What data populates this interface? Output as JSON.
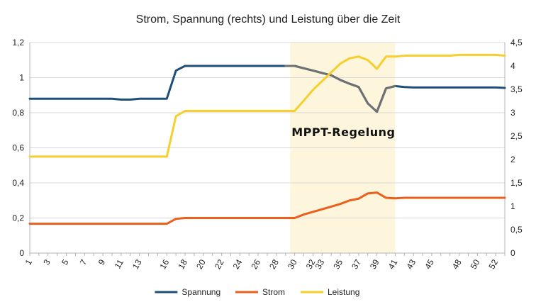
{
  "chart_data": {
    "type": "line",
    "title": "Strom, Spannung (rechts) und Leistung über die Zeit",
    "x": [
      1,
      2,
      3,
      4,
      5,
      6,
      7,
      8,
      9,
      10,
      11,
      12,
      13,
      14,
      15,
      16,
      17,
      18,
      19,
      20,
      21,
      22,
      23,
      24,
      25,
      26,
      27,
      28,
      29,
      30,
      31,
      32,
      33,
      34,
      35,
      36,
      37,
      38,
      39,
      40,
      41,
      42,
      43,
      44,
      45,
      46,
      47,
      48,
      49,
      50,
      51,
      52,
      53
    ],
    "x_tick_labels": [
      "1",
      "3",
      "5",
      "7",
      "9",
      "11",
      "13",
      "16",
      "18",
      "20",
      "22",
      "24",
      "26",
      "28",
      "30",
      "32",
      "33",
      "35",
      "37",
      "39",
      "41",
      "43",
      "45",
      "48",
      "50",
      "52"
    ],
    "y_left_lim": [
      0,
      1.2
    ],
    "y_left_ticks": [
      "0",
      "0,2",
      "0,4",
      "0,6",
      "0,8",
      "1",
      "1,2"
    ],
    "y_right_lim": [
      0,
      4.5
    ],
    "y_right_ticks": [
      "0",
      "0,5",
      "1",
      "1,5",
      "2",
      "2,5",
      "3",
      "3,5",
      "4",
      "4,5"
    ],
    "grid": true,
    "legend_position": "bottom",
    "highlight_region": {
      "x_start": 29.5,
      "x_end": 41,
      "color": "#fdf6dc",
      "label": "MPPT-Regelung"
    },
    "series": [
      {
        "name": "Spannung",
        "axis": "right",
        "color": "#1f4e79",
        "values": [
          3.3,
          3.3,
          3.3,
          3.3,
          3.3,
          3.3,
          3.3,
          3.3,
          3.3,
          3.3,
          3.28,
          3.28,
          3.3,
          3.3,
          3.3,
          3.3,
          3.9,
          4.0,
          4.0,
          4.0,
          4.0,
          4.0,
          4.0,
          4.0,
          4.0,
          4.0,
          4.0,
          4.0,
          4.0,
          4.0,
          3.95,
          3.9,
          3.85,
          3.8,
          3.7,
          3.62,
          3.55,
          3.2,
          3.02,
          3.52,
          3.57,
          3.55,
          3.54,
          3.54,
          3.54,
          3.54,
          3.54,
          3.54,
          3.54,
          3.54,
          3.54,
          3.54,
          3.53
        ]
      },
      {
        "name": "Strom",
        "axis": "left",
        "color": "#ed5e1c",
        "values": [
          0.167,
          0.167,
          0.167,
          0.167,
          0.167,
          0.167,
          0.167,
          0.167,
          0.167,
          0.167,
          0.167,
          0.167,
          0.167,
          0.167,
          0.167,
          0.167,
          0.195,
          0.2,
          0.2,
          0.2,
          0.2,
          0.2,
          0.2,
          0.2,
          0.2,
          0.2,
          0.2,
          0.2,
          0.2,
          0.2,
          0.22,
          0.235,
          0.25,
          0.265,
          0.28,
          0.3,
          0.31,
          0.34,
          0.345,
          0.315,
          0.312,
          0.315,
          0.315,
          0.315,
          0.315,
          0.315,
          0.315,
          0.315,
          0.315,
          0.315,
          0.315,
          0.315,
          0.315
        ]
      },
      {
        "name": "Leistung",
        "axis": "left",
        "color": "#f6cf2c",
        "values": [
          0.55,
          0.55,
          0.55,
          0.55,
          0.55,
          0.55,
          0.55,
          0.55,
          0.55,
          0.55,
          0.55,
          0.55,
          0.55,
          0.55,
          0.55,
          0.55,
          0.78,
          0.81,
          0.81,
          0.81,
          0.81,
          0.81,
          0.81,
          0.81,
          0.81,
          0.81,
          0.81,
          0.81,
          0.81,
          0.81,
          0.87,
          0.93,
          0.98,
          1.03,
          1.08,
          1.11,
          1.12,
          1.1,
          1.05,
          1.12,
          1.12,
          1.125,
          1.125,
          1.125,
          1.125,
          1.125,
          1.125,
          1.13,
          1.13,
          1.13,
          1.13,
          1.13,
          1.125
        ]
      }
    ]
  }
}
